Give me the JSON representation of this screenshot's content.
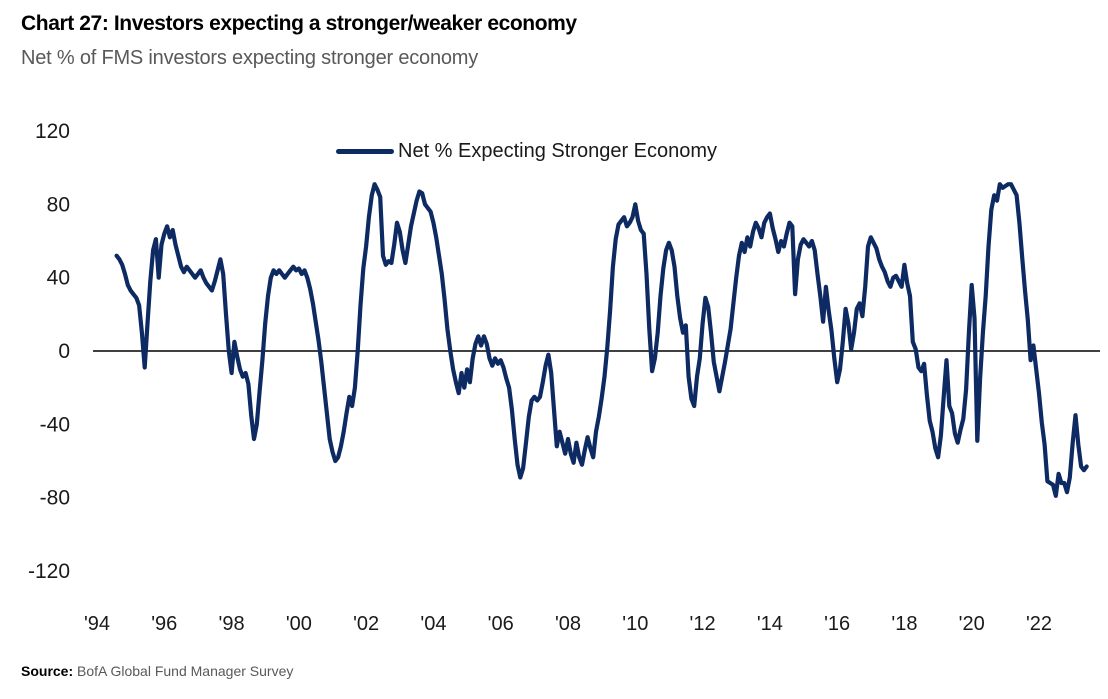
{
  "header": {
    "title": "Chart 27: Investors expecting a stronger/weaker economy",
    "subtitle": "Net % of FMS investors expecting stronger economy"
  },
  "legend": {
    "label": "Net % Expecting Stronger Economy"
  },
  "footer": {
    "source_label": "Source:",
    "source_text": " BofA Global Fund Manager Survey"
  },
  "colors": {
    "series": "#0e2a63",
    "zero_axis": "#404040",
    "tick_text": "#1a1a1a",
    "subtitle_text": "#595959"
  },
  "chart_data": {
    "type": "line",
    "title": "Chart 27: Investors expecting a stronger/weaker economy",
    "subtitle": "Net % of FMS investors expecting stronger economy",
    "xlabel": "",
    "ylabel": "Net % of FMS investors expecting stronger economy",
    "ylim": [
      -120,
      120
    ],
    "y_ticks": [
      120,
      80,
      40,
      0,
      -40,
      -80,
      -120
    ],
    "x_tick_labels": [
      "'94",
      "'96",
      "'98",
      "'00",
      "'02",
      "'04",
      "'06",
      "'08",
      "'10",
      "'12",
      "'14",
      "'16",
      "'18",
      "'20",
      "'22"
    ],
    "x_tick_years": [
      1994,
      1996,
      1998,
      2000,
      2002,
      2004,
      2006,
      2008,
      2010,
      2012,
      2014,
      2016,
      2018,
      2020,
      2022
    ],
    "grid": false,
    "zero_line": true,
    "legend_position": "top-center",
    "series": [
      {
        "name": "Net % Expecting Stronger Economy",
        "color": "#0e2a63",
        "start": "1994-08",
        "frequency": "monthly",
        "values": [
          52,
          50,
          47,
          42,
          36,
          33,
          31,
          29,
          25,
          10,
          -9,
          15,
          38,
          55,
          61,
          40,
          58,
          64,
          68,
          62,
          66,
          58,
          52,
          46,
          43,
          46,
          44,
          42,
          40,
          42,
          44,
          40,
          37,
          35,
          33,
          38,
          44,
          50,
          42,
          20,
          0,
          -12,
          5,
          -3,
          -10,
          -14,
          -12,
          -18,
          -35,
          -48,
          -40,
          -22,
          -5,
          15,
          30,
          40,
          44,
          42,
          44,
          42,
          40,
          42,
          44,
          46,
          44,
          45,
          42,
          44,
          40,
          34,
          26,
          16,
          6,
          -6,
          -20,
          -34,
          -48,
          -55,
          -60,
          -58,
          -52,
          -44,
          -34,
          -25,
          -30,
          -20,
          0,
          25,
          45,
          57,
          73,
          85,
          91,
          88,
          84,
          52,
          47,
          49,
          48,
          58,
          70,
          65,
          55,
          48,
          58,
          68,
          75,
          82,
          87,
          86,
          80,
          78,
          76,
          70,
          62,
          52,
          42,
          28,
          12,
          0,
          -10,
          -17,
          -23,
          -12,
          -20,
          -10,
          -17,
          -4,
          4,
          8,
          3,
          8,
          4,
          -4,
          -8,
          -4,
          -7,
          -5,
          -9,
          -15,
          -20,
          -32,
          -48,
          -62,
          -69,
          -64,
          -50,
          -36,
          -27,
          -25,
          -27,
          -25,
          -17,
          -8,
          -2,
          -12,
          -32,
          -52,
          -44,
          -50,
          -56,
          -48,
          -56,
          -61,
          -50,
          -58,
          -62,
          -54,
          -47,
          -53,
          -58,
          -44,
          -36,
          -26,
          -14,
          2,
          22,
          46,
          61,
          69,
          71,
          73,
          68,
          70,
          73,
          80,
          71,
          66,
          64,
          42,
          12,
          -11,
          -4,
          10,
          30,
          45,
          55,
          59,
          55,
          46,
          30,
          18,
          10,
          14,
          -14,
          -26,
          -30,
          -14,
          -4,
          15,
          29,
          24,
          10,
          -6,
          -14,
          -22,
          -14,
          -6,
          3,
          12,
          26,
          40,
          52,
          59,
          54,
          62,
          57,
          65,
          70,
          67,
          62,
          70,
          73,
          75,
          67,
          61,
          54,
          60,
          57,
          64,
          70,
          68,
          31,
          50,
          58,
          61,
          59,
          57,
          60,
          55,
          42,
          30,
          16,
          35,
          22,
          11,
          -4,
          -17,
          -10,
          5,
          23,
          15,
          1,
          10,
          23,
          26,
          19,
          35,
          57,
          62,
          59,
          56,
          50,
          46,
          43,
          38,
          35,
          40,
          41,
          38,
          35,
          47,
          37,
          30,
          5,
          1,
          -9,
          -11,
          -7,
          -24,
          -38,
          -44,
          -53,
          -58,
          -46,
          -25,
          -5,
          -30,
          -34,
          -45,
          -50,
          -43,
          -37,
          -21,
          10,
          36,
          18,
          -49,
          -15,
          10,
          30,
          57,
          77,
          85,
          82,
          91,
          89,
          90,
          91,
          91,
          88,
          85,
          70,
          51,
          33,
          17,
          -5,
          3,
          -10,
          -23,
          -39,
          -51,
          -71,
          -72,
          -73,
          -79,
          -67,
          -72,
          -72,
          -77,
          -69,
          -50,
          -35,
          -51,
          -63,
          -65,
          -63
        ]
      }
    ]
  }
}
